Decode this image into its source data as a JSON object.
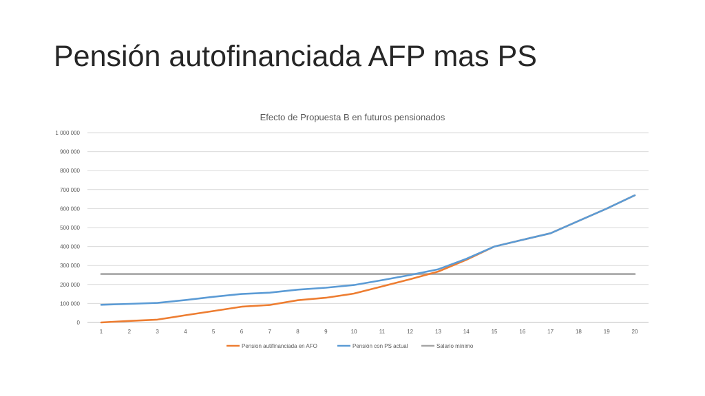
{
  "slide": {
    "title": "Pensión autofinanciada AFP mas PS"
  },
  "chart_data": {
    "type": "line",
    "title": "Efecto de Propuesta B en futuros pensionados",
    "xlabel": "",
    "ylabel": "",
    "x": [
      1,
      2,
      3,
      4,
      5,
      6,
      7,
      8,
      9,
      10,
      11,
      12,
      13,
      14,
      15,
      16,
      17,
      18,
      19,
      20
    ],
    "ylim": [
      0,
      1000000
    ],
    "yticks": [
      0,
      100000,
      200000,
      300000,
      400000,
      500000,
      600000,
      700000,
      800000,
      900000,
      1000000
    ],
    "ytick_labels": [
      "0",
      "100 000",
      "200 000",
      "300 000",
      "400 000",
      "500 000",
      "600 000",
      "700 000",
      "800 000",
      "900 000",
      "1 000 000"
    ],
    "grid": true,
    "legend_position": "bottom",
    "series": [
      {
        "name": "Pension autifinanciada en AFO",
        "color": "#ED7D31",
        "values": [
          0,
          8000,
          15000,
          38000,
          60000,
          83000,
          92000,
          117000,
          130000,
          152000,
          190000,
          228000,
          268000,
          330000,
          400000,
          435000,
          470000,
          535000,
          600000,
          670000
        ]
      },
      {
        "name": "Pensión con PS actual",
        "color": "#5B9BD5",
        "values": [
          93000,
          98000,
          103000,
          118000,
          135000,
          150000,
          157000,
          173000,
          183000,
          197000,
          223000,
          250000,
          280000,
          335000,
          400000,
          435000,
          470000,
          535000,
          600000,
          670000
        ]
      },
      {
        "name": "Salario mínimo",
        "color": "#A5A5A5",
        "values": [
          255000,
          255000,
          255000,
          255000,
          255000,
          255000,
          255000,
          255000,
          255000,
          255000,
          255000,
          255000,
          255000,
          255000,
          255000,
          255000,
          255000,
          255000,
          255000,
          255000
        ]
      }
    ]
  }
}
